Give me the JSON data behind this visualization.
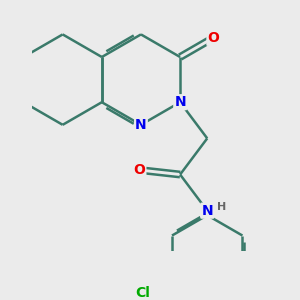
{
  "background_color": "#ebebeb",
  "bond_color": "#3a7a6a",
  "bond_width": 1.8,
  "atom_colors": {
    "N": "#0000ee",
    "O": "#ee0000",
    "Cl": "#00aa00",
    "H": "#666666"
  }
}
